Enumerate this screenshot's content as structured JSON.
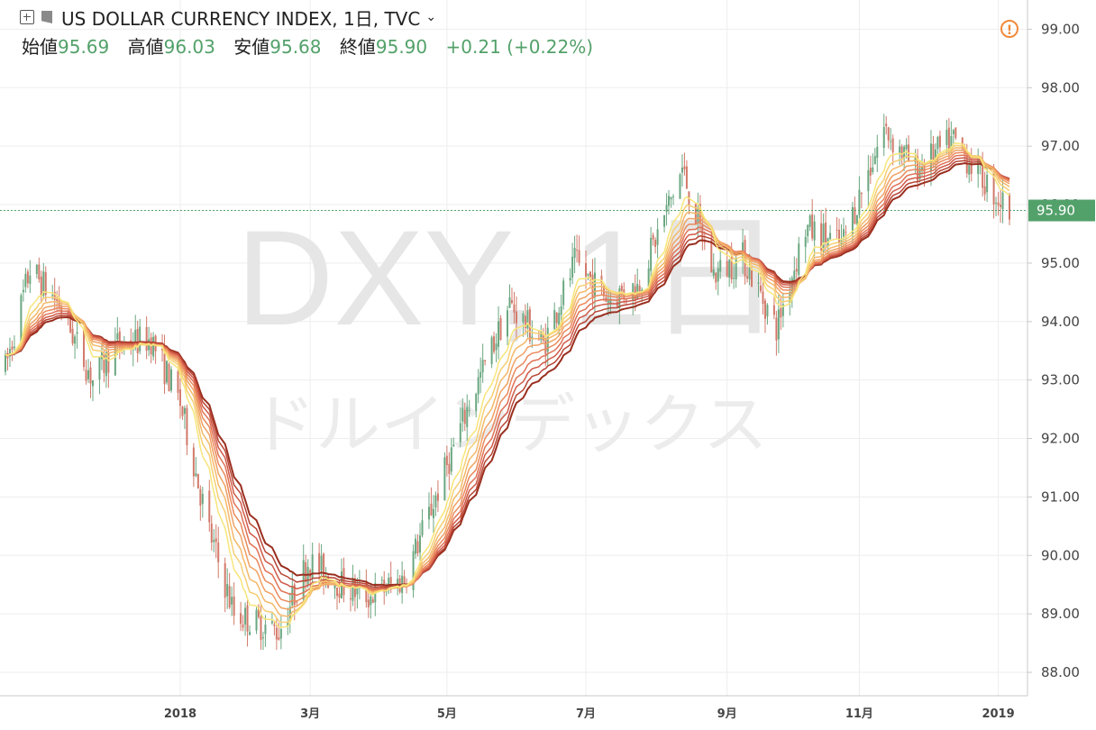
{
  "header": {
    "symbol_title": "US DOLLAR CURRENCY INDEX, 1日, TVC",
    "open_label": "始値",
    "open_value": "95.69",
    "high_label": "高値",
    "high_value": "96.03",
    "low_label": "安値",
    "low_value": "95.68",
    "close_label": "終値",
    "close_value": "95.90",
    "change": "+0.21 (+0.22%)"
  },
  "watermark": {
    "symbol": "DXY, 1日",
    "name": "ドルインデックス"
  },
  "alert_icon": "!",
  "colors": {
    "up": "#6aa780",
    "down": "#d2796a",
    "price_line": "#53a16a",
    "ribbon": [
      "#f7e57a",
      "#f6cf73",
      "#f4b86a",
      "#f0a163",
      "#ea8a5c",
      "#e07255",
      "#cf5a48",
      "#b84535",
      "#9a2f1f"
    ]
  },
  "chart_data": {
    "type": "candlestick",
    "title": "US DOLLAR CURRENCY INDEX, 1日, TVC",
    "ylabel": "",
    "ylim": [
      87.6,
      99.5
    ],
    "y_ticks": [
      "88.00",
      "89.00",
      "90.00",
      "91.00",
      "92.00",
      "93.00",
      "94.00",
      "95.00",
      "96.00",
      "97.00",
      "98.00",
      "99.00"
    ],
    "last_price": "95.90",
    "time_axis_ticks": [
      {
        "label": "2018",
        "date": "2018-01-02"
      },
      {
        "label": "3月",
        "date": "2018-03-01"
      },
      {
        "label": "5月",
        "date": "2018-05-01"
      },
      {
        "label": "7月",
        "date": "2018-07-02"
      },
      {
        "label": "9月",
        "date": "2018-09-03"
      },
      {
        "label": "11月",
        "date": "2018-11-01"
      },
      {
        "label": "2019",
        "date": "2019-01-02"
      }
    ],
    "period": [
      "2017-10-16",
      "2019-01-07"
    ],
    "close_path": [
      [
        "2017-10-16",
        93.2
      ],
      [
        "2017-10-27",
        94.9
      ],
      [
        "2017-11-09",
        94.3
      ],
      [
        "2017-11-24",
        93.0
      ],
      [
        "2017-12-05",
        93.6
      ],
      [
        "2017-12-20",
        93.7
      ],
      [
        "2018-01-02",
        92.6
      ],
      [
        "2018-01-15",
        90.4
      ],
      [
        "2018-01-26",
        89.0
      ],
      [
        "2018-02-15",
        88.7
      ],
      [
        "2018-02-28",
        89.9
      ],
      [
        "2018-03-15",
        89.5
      ],
      [
        "2018-03-27",
        89.3
      ],
      [
        "2018-04-12",
        89.6
      ],
      [
        "2018-04-26",
        91.0
      ],
      [
        "2018-05-10",
        92.5
      ],
      [
        "2018-05-29",
        94.3
      ],
      [
        "2018-06-13",
        93.6
      ],
      [
        "2018-06-27",
        95.0
      ],
      [
        "2018-07-12",
        94.4
      ],
      [
        "2018-07-25",
        94.6
      ],
      [
        "2018-08-14",
        96.6
      ],
      [
        "2018-08-28",
        94.8
      ],
      [
        "2018-09-10",
        95.1
      ],
      [
        "2018-09-25",
        93.9
      ],
      [
        "2018-10-08",
        95.6
      ],
      [
        "2018-10-24",
        95.3
      ],
      [
        "2018-11-12",
        97.3
      ],
      [
        "2018-11-26",
        96.6
      ],
      [
        "2018-12-13",
        97.1
      ],
      [
        "2018-12-31",
        96.2
      ],
      [
        "2019-01-07",
        95.9
      ]
    ],
    "moving_average_ribbon": {
      "count": 9,
      "end_values": [
        96.5,
        96.5,
        96.5,
        96.5,
        96.5,
        96.5,
        96.5,
        96.5,
        96.5
      ]
    }
  }
}
